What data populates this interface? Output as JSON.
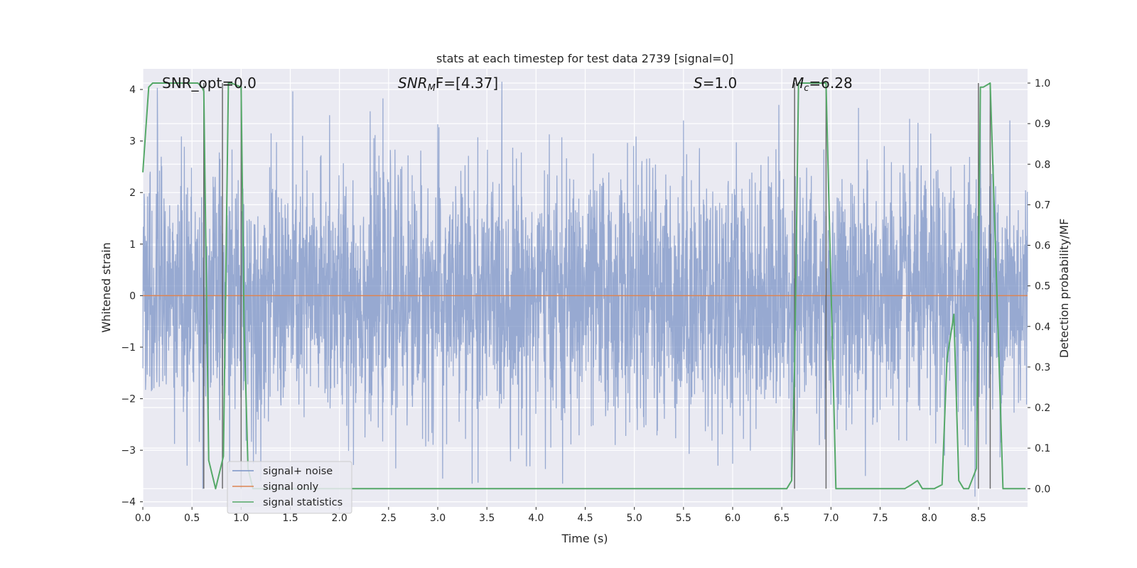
{
  "chart_data": {
    "type": "line",
    "title": "stats at each timestep for test data 2739 [signal=0]",
    "xlabel": "Time (s)",
    "ylabel": "Whitened strain",
    "y2label": "Detection probability/MF",
    "xlim": [
      0.0,
      9.0
    ],
    "ylim": [
      -4.1,
      4.4
    ],
    "y2lim": [
      -0.045,
      1.035
    ],
    "x_ticks": [
      0.0,
      0.5,
      1.0,
      1.5,
      2.0,
      2.5,
      3.0,
      3.5,
      4.0,
      4.5,
      5.0,
      5.5,
      6.0,
      6.5,
      7.0,
      7.5,
      8.0,
      8.5
    ],
    "x_tick_labels": [
      "0.0",
      "0.5",
      "1.0",
      "1.5",
      "2.0",
      "2.5",
      "3.0",
      "3.5",
      "4.0",
      "4.5",
      "5.0",
      "5.5",
      "6.0",
      "6.5",
      "7.0",
      "7.5",
      "8.0",
      "8.5"
    ],
    "y_ticks": [
      -4,
      -3,
      -2,
      -1,
      0,
      1,
      2,
      3,
      4
    ],
    "y_tick_labels": [
      "−4",
      "−3",
      "−2",
      "−1",
      "0",
      "1",
      "2",
      "3",
      "4"
    ],
    "y2_ticks": [
      0.0,
      0.1,
      0.2,
      0.3,
      0.4,
      0.5,
      0.6,
      0.7,
      0.8,
      0.9,
      1.0
    ],
    "y2_tick_labels": [
      "0.0",
      "0.1",
      "0.2",
      "0.3",
      "0.4",
      "0.5",
      "0.6",
      "0.7",
      "0.8",
      "0.9",
      "1.0"
    ],
    "grid": true,
    "annotations": {
      "snr_opt": "SNR_opt=0.0",
      "snr_mf_main": "SNR",
      "snr_mf_sub": "M",
      "snr_mf_rest": "F=[4.37]",
      "s_main": "S",
      "s_rest": "=1.0",
      "mc_main": "M",
      "mc_sub": "c",
      "mc_rest": "=6.28"
    },
    "legend": {
      "placement": "lower-left",
      "entries": [
        "signal+ noise",
        "signal only",
        "signal statistics"
      ]
    },
    "series": [
      {
        "name": "signal+ noise",
        "axis": "left",
        "color": "#7b93c6",
        "style": "noise-trace",
        "sample_rate_hz": 400,
        "typical_amplitude": 1.5,
        "peak_values": [
          {
            "x": 4.27,
            "y": 4.0
          },
          {
            "x": 4.27,
            "y": -3.65
          },
          {
            "x": 6.47,
            "y": 3.7
          },
          {
            "x": 8.52,
            "y": 3.9
          },
          {
            "x": 1.9,
            "y": 3.5
          },
          {
            "x": 0.15,
            "y": 3.2
          },
          {
            "x": 5.5,
            "y": 3.4
          },
          {
            "x": 8.82,
            "y": 3.4
          },
          {
            "x": 3.05,
            "y": -3.55
          },
          {
            "x": 3.35,
            "y": -3.65
          },
          {
            "x": 7.35,
            "y": -3.5
          },
          {
            "x": 0.45,
            "y": -3.3
          },
          {
            "x": 1.2,
            "y": -3.6
          },
          {
            "x": 5.85,
            "y": -3.3
          }
        ]
      },
      {
        "name": "signal only",
        "axis": "left",
        "color": "#dd8452",
        "x": [
          0.0,
          9.0
        ],
        "y": [
          0.0,
          0.0
        ]
      },
      {
        "name": "signal statistics",
        "axis": "right",
        "color": "#55a868",
        "x": [
          0.0,
          0.06,
          0.1,
          0.56,
          0.6,
          0.62,
          0.67,
          0.74,
          0.82,
          0.87,
          0.9,
          1.0,
          1.03,
          1.07,
          1.12,
          1.16,
          2.0,
          4.0,
          6.0,
          6.55,
          6.6,
          6.63,
          6.67,
          6.7,
          6.95,
          7.05,
          7.5,
          7.75,
          7.82,
          7.88,
          7.93,
          8.05,
          8.13,
          8.18,
          8.25,
          8.3,
          8.35,
          8.4,
          8.48,
          8.52,
          8.55,
          8.62,
          8.67,
          8.75,
          8.98
        ],
        "y": [
          0.78,
          0.99,
          1.0,
          1.0,
          0.99,
          0.98,
          0.07,
          0.0,
          0.08,
          1.0,
          1.0,
          0.99,
          0.4,
          0.05,
          0.0,
          0.0,
          0.0,
          0.0,
          0.0,
          0.0,
          0.02,
          0.3,
          1.0,
          1.0,
          1.0,
          0.0,
          0.0,
          0.0,
          0.01,
          0.02,
          0.0,
          0.0,
          0.01,
          0.32,
          0.43,
          0.02,
          0.0,
          0.0,
          0.05,
          0.99,
          0.99,
          1.0,
          0.62,
          0.0,
          0.0
        ]
      }
    ],
    "vertical_lines": {
      "axis": "right",
      "color": "#555555",
      "x": [
        0.62,
        0.81,
        1.0,
        6.63,
        6.95,
        8.5,
        8.62
      ],
      "y_top": 1.0,
      "y_bottom": 0.0
    }
  }
}
